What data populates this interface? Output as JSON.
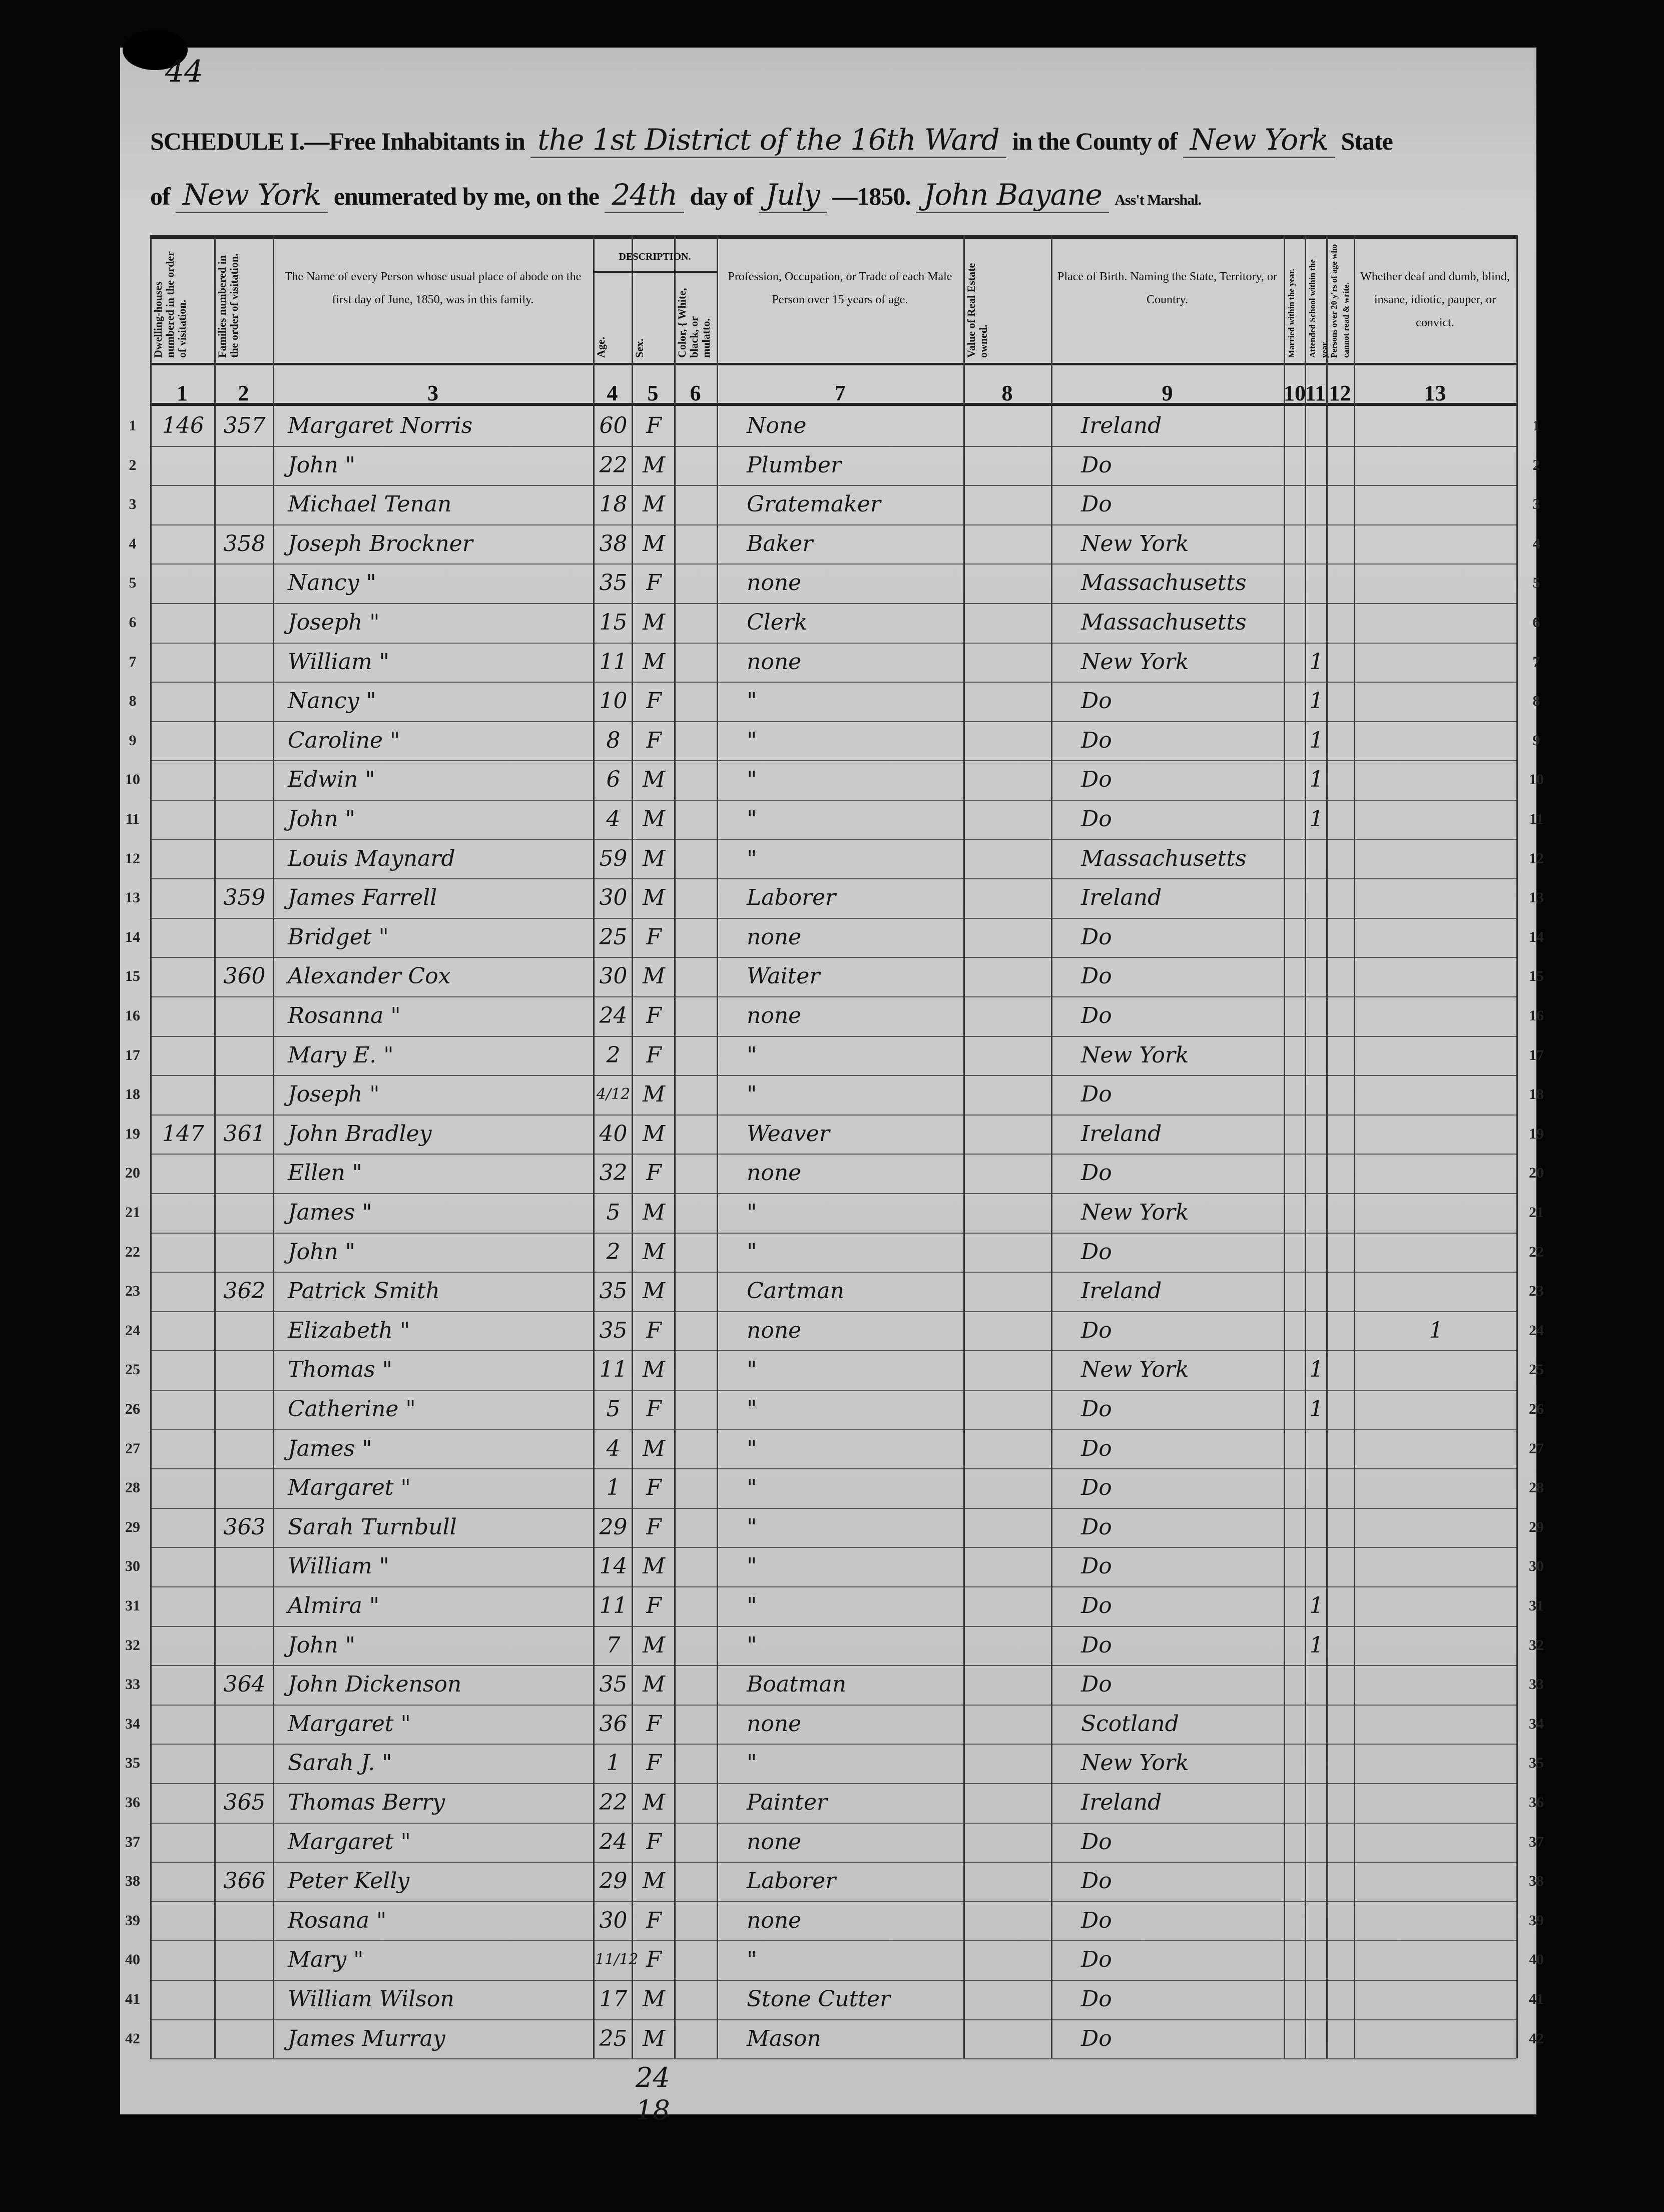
{
  "page_number": "44",
  "header": {
    "line1_prefix": "SCHEDULE I.—Free Inhabitants in",
    "district": "the 1st District of the 16th Ward",
    "county_label": "in the County of",
    "county": "New York",
    "state_label": "State",
    "line2_prefix": "of",
    "state": "New York",
    "enumerated_label": "enumerated by me, on the",
    "day": "24th",
    "day_label": "day of",
    "month": "July",
    "year": "—1850.",
    "marshal": "John Bayane",
    "marshal_label": "Ass't Marshal."
  },
  "columns": [
    {
      "num": "1",
      "label": "Dwelling-houses numbered in the order of visitation."
    },
    {
      "num": "2",
      "label": "Families numbered in the order of visitation."
    },
    {
      "num": "3",
      "label": "The Name of every Person whose usual place of abode on the first day of June, 1850, was in this family."
    },
    {
      "num": "4",
      "label": "Age."
    },
    {
      "num": "5",
      "label": "Sex."
    },
    {
      "num": "6",
      "label": "Color, { White, black, or mulatto."
    },
    {
      "num": "7",
      "label": "Profession, Occupation, or Trade of each Male Person over 15 years of age."
    },
    {
      "num": "8",
      "label": "Value of Real Estate owned."
    },
    {
      "num": "9",
      "label": "Place of Birth. Naming the State, Territory, or Country."
    },
    {
      "num": "10",
      "label": "Married within the year."
    },
    {
      "num": "11",
      "label": "Attended School within the year."
    },
    {
      "num": "12",
      "label": "Persons over 20 y'rs of age who cannot read & write."
    },
    {
      "num": "13",
      "label": "Whether deaf and dumb, blind, insane, idiotic, pauper, or convict."
    }
  ],
  "description_label": "DESCRIPTION.",
  "rows": [
    [
      "146",
      "357",
      "Margaret Norris",
      "60",
      "F",
      "",
      "None",
      "",
      "Ireland",
      "",
      "",
      "",
      ""
    ],
    [
      "",
      "",
      "John  \"",
      "22",
      "M",
      "",
      "Plumber",
      "",
      "Do",
      "",
      "",
      "",
      ""
    ],
    [
      "",
      "",
      "Michael Tenan",
      "18",
      "M",
      "",
      "Gratemaker",
      "",
      "Do",
      "",
      "",
      "",
      ""
    ],
    [
      "",
      "358",
      "Joseph Brockner",
      "38",
      "M",
      "",
      "Baker",
      "",
      "New York",
      "",
      "",
      "",
      ""
    ],
    [
      "",
      "",
      "Nancy  \"",
      "35",
      "F",
      "",
      "none",
      "",
      "Massachusetts",
      "",
      "",
      "",
      ""
    ],
    [
      "",
      "",
      "Joseph  \"",
      "15",
      "M",
      "",
      "Clerk",
      "",
      "Massachusetts",
      "",
      "",
      "",
      ""
    ],
    [
      "",
      "",
      "William  \"",
      "11",
      "M",
      "",
      "none",
      "",
      "New York",
      "",
      "1",
      "",
      ""
    ],
    [
      "",
      "",
      "Nancy  \"",
      "10",
      "F",
      "",
      "\"",
      "",
      "Do",
      "",
      "1",
      "",
      ""
    ],
    [
      "",
      "",
      "Caroline  \"",
      "8",
      "F",
      "",
      "\"",
      "",
      "Do",
      "",
      "1",
      "",
      ""
    ],
    [
      "",
      "",
      "Edwin  \"",
      "6",
      "M",
      "",
      "\"",
      "",
      "Do",
      "",
      "1",
      "",
      ""
    ],
    [
      "",
      "",
      "John  \"",
      "4",
      "M",
      "",
      "\"",
      "",
      "Do",
      "",
      "1",
      "",
      ""
    ],
    [
      "",
      "",
      "Louis Maynard",
      "59",
      "M",
      "",
      "\"",
      "",
      "Massachusetts",
      "",
      "",
      "",
      ""
    ],
    [
      "",
      "359",
      "James Farrell",
      "30",
      "M",
      "",
      "Laborer",
      "",
      "Ireland",
      "",
      "",
      "",
      ""
    ],
    [
      "",
      "",
      "Bridget  \"",
      "25",
      "F",
      "",
      "none",
      "",
      "Do",
      "",
      "",
      "",
      ""
    ],
    [
      "",
      "360",
      "Alexander Cox",
      "30",
      "M",
      "",
      "Waiter",
      "",
      "Do",
      "",
      "",
      "",
      ""
    ],
    [
      "",
      "",
      "Rosanna  \"",
      "24",
      "F",
      "",
      "none",
      "",
      "Do",
      "",
      "",
      "",
      ""
    ],
    [
      "",
      "",
      "Mary E.  \"",
      "2",
      "F",
      "",
      "\"",
      "",
      "New York",
      "",
      "",
      "",
      ""
    ],
    [
      "",
      "",
      "Joseph  \"",
      "4/12",
      "M",
      "",
      "\"",
      "",
      "Do",
      "",
      "",
      "",
      ""
    ],
    [
      "147",
      "361",
      "John Bradley",
      "40",
      "M",
      "",
      "Weaver",
      "",
      "Ireland",
      "",
      "",
      "",
      ""
    ],
    [
      "",
      "",
      "Ellen  \"",
      "32",
      "F",
      "",
      "none",
      "",
      "Do",
      "",
      "",
      "",
      ""
    ],
    [
      "",
      "",
      "James  \"",
      "5",
      "M",
      "",
      "\"",
      "",
      "New York",
      "",
      "",
      "",
      ""
    ],
    [
      "",
      "",
      "John  \"",
      "2",
      "M",
      "",
      "\"",
      "",
      "Do",
      "",
      "",
      "",
      ""
    ],
    [
      "",
      "362",
      "Patrick Smith",
      "35",
      "M",
      "",
      "Cartman",
      "",
      "Ireland",
      "",
      "",
      "",
      ""
    ],
    [
      "",
      "",
      "Elizabeth  \"",
      "35",
      "F",
      "",
      "none",
      "",
      "Do",
      "",
      "",
      "",
      "1"
    ],
    [
      "",
      "",
      "Thomas  \"",
      "11",
      "M",
      "",
      "\"",
      "",
      "New York",
      "",
      "1",
      "",
      ""
    ],
    [
      "",
      "",
      "Catherine  \"",
      "5",
      "F",
      "",
      "\"",
      "",
      "Do",
      "",
      "1",
      "",
      ""
    ],
    [
      "",
      "",
      "James  \"",
      "4",
      "M",
      "",
      "\"",
      "",
      "Do",
      "",
      "",
      "",
      ""
    ],
    [
      "",
      "",
      "Margaret  \"",
      "1",
      "F",
      "",
      "\"",
      "",
      "Do",
      "",
      "",
      "",
      ""
    ],
    [
      "",
      "363",
      "Sarah Turnbull",
      "29",
      "F",
      "",
      "\"",
      "",
      "Do",
      "",
      "",
      "",
      ""
    ],
    [
      "",
      "",
      "William  \"",
      "14",
      "M",
      "",
      "\"",
      "",
      "Do",
      "",
      "",
      "",
      ""
    ],
    [
      "",
      "",
      "Almira  \"",
      "11",
      "F",
      "",
      "\"",
      "",
      "Do",
      "",
      "1",
      "",
      ""
    ],
    [
      "",
      "",
      "John  \"",
      "7",
      "M",
      "",
      "\"",
      "",
      "Do",
      "",
      "1",
      "",
      ""
    ],
    [
      "",
      "364",
      "John Dickenson",
      "35",
      "M",
      "",
      "Boatman",
      "",
      "Do",
      "",
      "",
      "",
      ""
    ],
    [
      "",
      "",
      "Margaret  \"",
      "36",
      "F",
      "",
      "none",
      "",
      "Scotland",
      "",
      "",
      "",
      ""
    ],
    [
      "",
      "",
      "Sarah J.  \"",
      "1",
      "F",
      "",
      "\"",
      "",
      "New York",
      "",
      "",
      "",
      ""
    ],
    [
      "",
      "365",
      "Thomas Berry",
      "22",
      "M",
      "",
      "Painter",
      "",
      "Ireland",
      "",
      "",
      "",
      ""
    ],
    [
      "",
      "",
      "Margaret  \"",
      "24",
      "F",
      "",
      "none",
      "",
      "Do",
      "",
      "",
      "",
      ""
    ],
    [
      "",
      "366",
      "Peter Kelly",
      "29",
      "M",
      "",
      "Laborer",
      "",
      "Do",
      "",
      "",
      "",
      ""
    ],
    [
      "",
      "",
      "Rosana  \"",
      "30",
      "F",
      "",
      "none",
      "",
      "Do",
      "",
      "",
      "",
      ""
    ],
    [
      "",
      "",
      "Mary  \"",
      "11/12",
      "F",
      "",
      "\"",
      "",
      "Do",
      "",
      "",
      "",
      ""
    ],
    [
      "",
      "",
      "William Wilson",
      "17",
      "M",
      "",
      "Stone Cutter",
      "",
      "Do",
      "",
      "",
      "",
      ""
    ],
    [
      "",
      "",
      "James Murray",
      "25",
      "M",
      "",
      "Mason",
      "",
      "Do",
      "",
      "",
      "",
      ""
    ]
  ],
  "tally": {
    "top": "24",
    "bottom": "18"
  }
}
